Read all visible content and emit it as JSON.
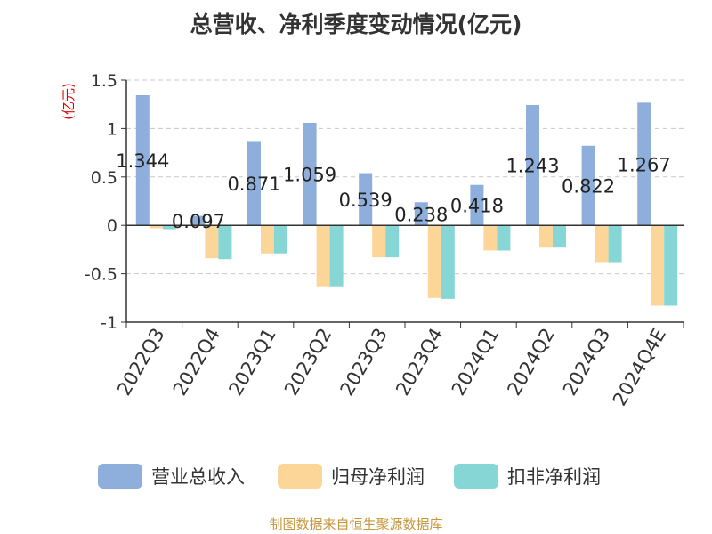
{
  "chart_data": {
    "type": "bar",
    "title": "总营收、净利季度变动情况(亿元)",
    "ylabel": "(亿元)",
    "xlabel": "",
    "ylim": [
      -1,
      1.5
    ],
    "yticks": [
      1.5,
      1,
      0.5,
      0,
      -0.5,
      -1
    ],
    "ytick_labels": [
      "1.5",
      "1",
      "0.5",
      "0",
      "-0.5",
      "-1"
    ],
    "grid": "horizontal dashed",
    "legend": "bottom",
    "categories": [
      "2022Q3",
      "2022Q4",
      "2023Q1",
      "2023Q2",
      "2023Q3",
      "2023Q4",
      "2024Q1",
      "2024Q2",
      "2024Q3",
      "2024Q4E"
    ],
    "series": [
      {
        "name": "营业总收入",
        "color": "#8eaedc",
        "values": [
          1.344,
          0.097,
          0.871,
          1.059,
          0.539,
          0.238,
          0.418,
          1.243,
          0.822,
          1.267
        ],
        "labels": [
          "1.344",
          "0.097",
          "0.871",
          "1.059",
          "0.539",
          "0.238",
          "0.418",
          "1.243",
          "0.822",
          "1.267"
        ]
      },
      {
        "name": "归母净利润",
        "color": "#fcd699",
        "values": [
          -0.03,
          -0.34,
          -0.29,
          -0.63,
          -0.33,
          -0.75,
          -0.26,
          -0.23,
          -0.38,
          -0.83
        ]
      },
      {
        "name": "扣非净利润",
        "color": "#86d6d6",
        "values": [
          -0.04,
          -0.35,
          -0.29,
          -0.63,
          -0.33,
          -0.76,
          -0.26,
          -0.23,
          -0.38,
          -0.83
        ]
      }
    ]
  },
  "footer": {
    "source": "制图数据来自恒生聚源数据库"
  }
}
